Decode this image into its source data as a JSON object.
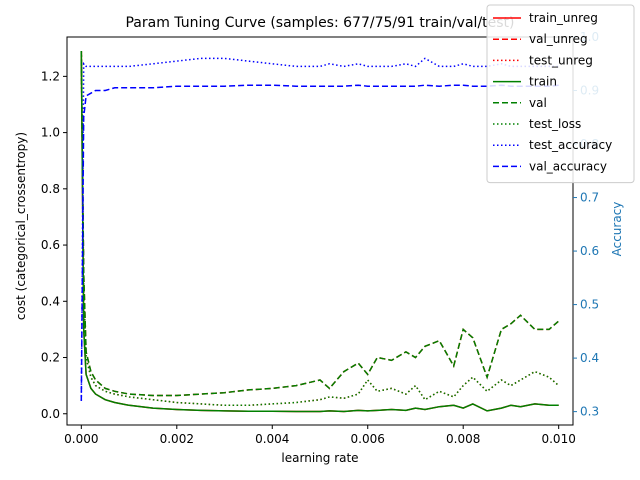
{
  "chart_data": {
    "type": "line",
    "title": "Param Tuning Curve (samples: 677/75/91 train/val/test)",
    "xlabel": "learning rate",
    "ylabel": "cost (categorical_crossentropy)",
    "ylabel_right": "Accuracy",
    "xlim": [
      -0.0003,
      0.0103
    ],
    "ylim": [
      -0.04,
      1.34
    ],
    "ylim_right": [
      0.275,
      1.0
    ],
    "x_ticks": [
      "0.000",
      "0.002",
      "0.004",
      "0.006",
      "0.008",
      "0.010"
    ],
    "x_tick_values": [
      0.0,
      0.002,
      0.004,
      0.006,
      0.008,
      0.01
    ],
    "y_ticks": [
      "0.0",
      "0.2",
      "0.4",
      "0.6",
      "0.8",
      "1.0",
      "1.2"
    ],
    "y_tick_values": [
      0.0,
      0.2,
      0.4,
      0.6,
      0.8,
      1.0,
      1.2
    ],
    "y_ticks_right": [
      "0.3",
      "0.4",
      "0.5",
      "0.6",
      "0.7",
      "0.8",
      "0.9",
      "1.0"
    ],
    "y_tick_values_right": [
      0.3,
      0.4,
      0.5,
      0.6,
      0.7,
      0.8,
      0.9,
      1.0
    ],
    "legend_position": "top-right",
    "grid": false,
    "x": [
      0.0,
      5e-05,
      0.0001,
      0.0002,
      0.0003,
      0.0005,
      0.0007,
      0.001,
      0.0015,
      0.002,
      0.0025,
      0.003,
      0.0035,
      0.004,
      0.0045,
      0.005,
      0.0052,
      0.0055,
      0.0058,
      0.006,
      0.0062,
      0.0065,
      0.0068,
      0.007,
      0.0072,
      0.0075,
      0.0078,
      0.008,
      0.0082,
      0.0085,
      0.0088,
      0.009,
      0.0092,
      0.0095,
      0.0098,
      0.01
    ],
    "series": [
      {
        "name": "train_unreg",
        "axis": "left",
        "color": "#ff0000",
        "dash": "solid",
        "values": [
          1.29,
          0.3,
          0.14,
          0.09,
          0.07,
          0.05,
          0.04,
          0.03,
          0.02,
          0.015,
          0.012,
          0.01,
          0.009,
          0.009,
          0.008,
          0.008,
          0.01,
          0.008,
          0.012,
          0.01,
          0.012,
          0.015,
          0.012,
          0.02,
          0.015,
          0.025,
          0.03,
          0.02,
          0.035,
          0.01,
          0.02,
          0.03,
          0.025,
          0.035,
          0.03,
          0.03
        ]
      },
      {
        "name": "val_unreg",
        "axis": "left",
        "color": "#ff0000",
        "dash": "dashed",
        "values": [
          1.29,
          0.5,
          0.22,
          0.15,
          0.12,
          0.09,
          0.08,
          0.07,
          0.065,
          0.065,
          0.07,
          0.075,
          0.085,
          0.09,
          0.1,
          0.12,
          0.09,
          0.15,
          0.18,
          0.14,
          0.2,
          0.19,
          0.22,
          0.2,
          0.24,
          0.26,
          0.17,
          0.3,
          0.27,
          0.13,
          0.3,
          0.32,
          0.35,
          0.3,
          0.3,
          0.33
        ]
      },
      {
        "name": "test_unreg",
        "axis": "left",
        "color": "#ff0000",
        "dash": "dotted",
        "values": [
          1.29,
          0.45,
          0.2,
          0.13,
          0.1,
          0.08,
          0.07,
          0.06,
          0.05,
          0.04,
          0.035,
          0.03,
          0.03,
          0.035,
          0.04,
          0.05,
          0.06,
          0.055,
          0.07,
          0.12,
          0.08,
          0.09,
          0.07,
          0.1,
          0.05,
          0.08,
          0.06,
          0.1,
          0.13,
          0.08,
          0.12,
          0.1,
          0.12,
          0.15,
          0.13,
          0.1
        ]
      },
      {
        "name": "train",
        "axis": "left",
        "color": "#008000",
        "dash": "solid",
        "values": [
          1.29,
          0.3,
          0.14,
          0.09,
          0.07,
          0.05,
          0.04,
          0.03,
          0.02,
          0.015,
          0.012,
          0.01,
          0.009,
          0.009,
          0.008,
          0.008,
          0.01,
          0.008,
          0.012,
          0.01,
          0.012,
          0.015,
          0.012,
          0.02,
          0.015,
          0.025,
          0.03,
          0.02,
          0.035,
          0.01,
          0.02,
          0.03,
          0.025,
          0.035,
          0.03,
          0.03
        ]
      },
      {
        "name": "val",
        "axis": "left",
        "color": "#008000",
        "dash": "dashed",
        "values": [
          1.29,
          0.5,
          0.22,
          0.15,
          0.12,
          0.09,
          0.08,
          0.07,
          0.065,
          0.065,
          0.07,
          0.075,
          0.085,
          0.09,
          0.1,
          0.12,
          0.09,
          0.15,
          0.18,
          0.14,
          0.2,
          0.19,
          0.22,
          0.2,
          0.24,
          0.26,
          0.17,
          0.3,
          0.27,
          0.13,
          0.3,
          0.32,
          0.35,
          0.3,
          0.3,
          0.33
        ]
      },
      {
        "name": "test_loss",
        "axis": "left",
        "color": "#008000",
        "dash": "dotted",
        "values": [
          1.29,
          0.45,
          0.2,
          0.13,
          0.1,
          0.08,
          0.07,
          0.06,
          0.05,
          0.04,
          0.035,
          0.03,
          0.03,
          0.035,
          0.04,
          0.05,
          0.06,
          0.055,
          0.07,
          0.12,
          0.08,
          0.09,
          0.07,
          0.1,
          0.05,
          0.08,
          0.06,
          0.1,
          0.13,
          0.08,
          0.12,
          0.1,
          0.12,
          0.15,
          0.13,
          0.1
        ]
      },
      {
        "name": "test_accuracy",
        "axis": "right",
        "color": "#0000ff",
        "dash": "dotted",
        "values": [
          0.32,
          0.95,
          0.945,
          0.945,
          0.945,
          0.945,
          0.945,
          0.945,
          0.95,
          0.955,
          0.96,
          0.96,
          0.955,
          0.95,
          0.945,
          0.945,
          0.95,
          0.945,
          0.95,
          0.945,
          0.945,
          0.945,
          0.95,
          0.945,
          0.96,
          0.945,
          0.945,
          0.95,
          0.945,
          0.945,
          0.95,
          0.945,
          0.945,
          0.945,
          0.945,
          0.945
        ]
      },
      {
        "name": "val_accuracy",
        "axis": "right",
        "color": "#0000ff",
        "dash": "dashed",
        "values": [
          0.32,
          0.85,
          0.89,
          0.895,
          0.9,
          0.9,
          0.905,
          0.905,
          0.905,
          0.908,
          0.908,
          0.908,
          0.91,
          0.91,
          0.908,
          0.908,
          0.908,
          0.908,
          0.91,
          0.908,
          0.908,
          0.908,
          0.908,
          0.908,
          0.91,
          0.908,
          0.91,
          0.91,
          0.908,
          0.908,
          0.91,
          0.908,
          0.908,
          0.908,
          0.908,
          0.91
        ]
      }
    ]
  }
}
